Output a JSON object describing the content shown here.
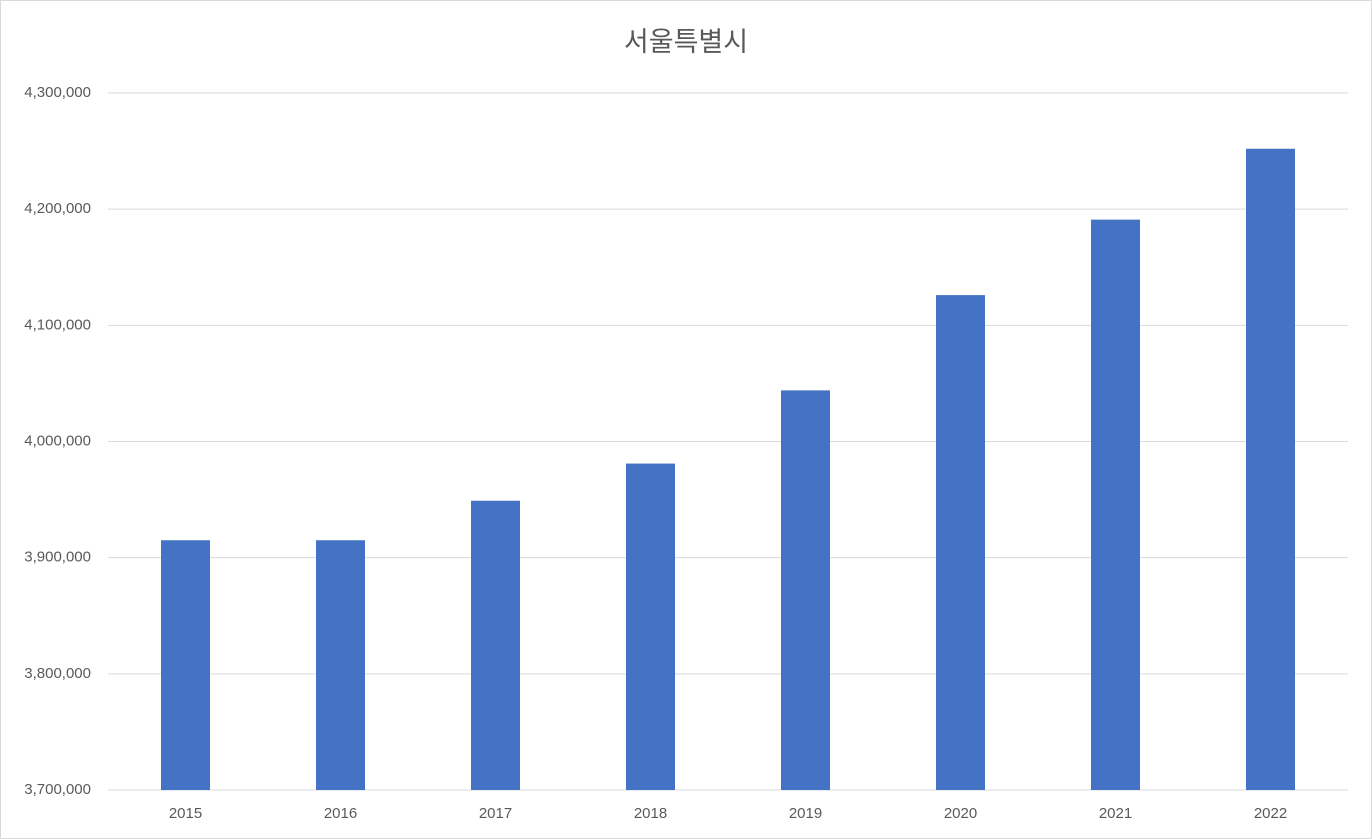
{
  "chart_data": {
    "type": "bar",
    "title": "서울특별시",
    "categories": [
      "2015",
      "2016",
      "2017",
      "2018",
      "2019",
      "2020",
      "2021",
      "2022"
    ],
    "values": [
      3915000,
      3915000,
      3949000,
      3981000,
      4044000,
      4126000,
      4191000,
      4252000
    ],
    "color": "#4472c4",
    "ylim": [
      3700000,
      4300000
    ],
    "yticks": [
      {
        "value": 3700000,
        "label": "3,700,000"
      },
      {
        "value": 3800000,
        "label": "3,800,000"
      },
      {
        "value": 3900000,
        "label": "3,900,000"
      },
      {
        "value": 4000000,
        "label": "4,000,000"
      },
      {
        "value": 4100000,
        "label": "4,100,000"
      },
      {
        "value": 4200000,
        "label": "4,200,000"
      },
      {
        "value": 4300000,
        "label": "4,300,000"
      }
    ],
    "grid": true
  }
}
